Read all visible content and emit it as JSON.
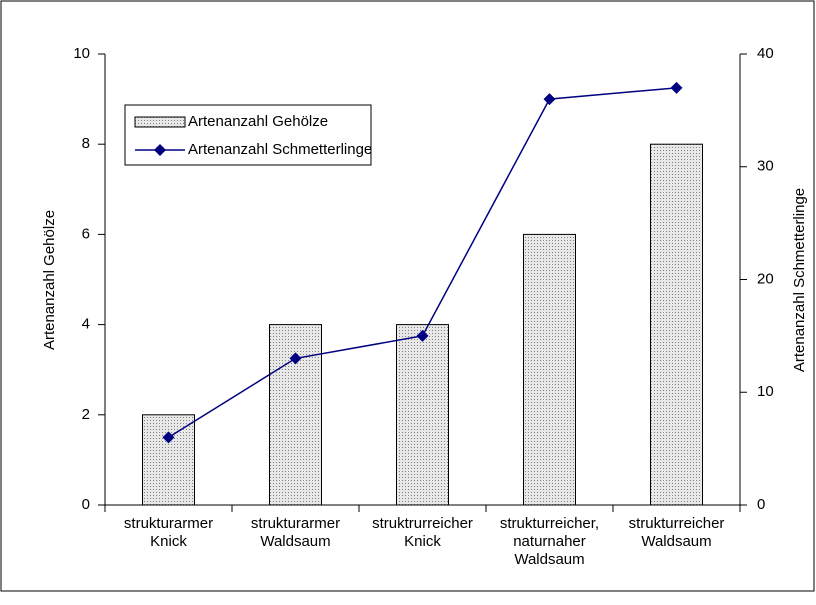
{
  "chart_data": {
    "type": "bar",
    "categories": [
      "strukturarmer\nKnick",
      "strukturarmer\nWaldsaum",
      "struktrurreicher\nKnick",
      "strukturreicher,\nnaturnaher\nWaldsaum",
      "strukturreicher\nWaldsaum"
    ],
    "series": [
      {
        "name": "Artenanzahl Gehölze",
        "type": "bar",
        "color": "#808080",
        "values": [
          2,
          4,
          4,
          6,
          8
        ]
      },
      {
        "name": "Artenanzahl Schmetterlinge",
        "type": "line",
        "axis": "y2",
        "color": "#000080",
        "values": [
          6,
          13,
          15,
          36,
          37
        ]
      }
    ],
    "ylabel": "Artenanzahl Gehölze",
    "y2label": "Artenanzahl Schmetterlinge",
    "ylim": [
      0,
      10
    ],
    "yticks": [
      0,
      2,
      4,
      6,
      8,
      10
    ],
    "y2lim": [
      0,
      40
    ],
    "y2ticks": [
      0,
      10,
      20,
      30,
      40
    ],
    "legend": "upper left",
    "grid": false
  }
}
